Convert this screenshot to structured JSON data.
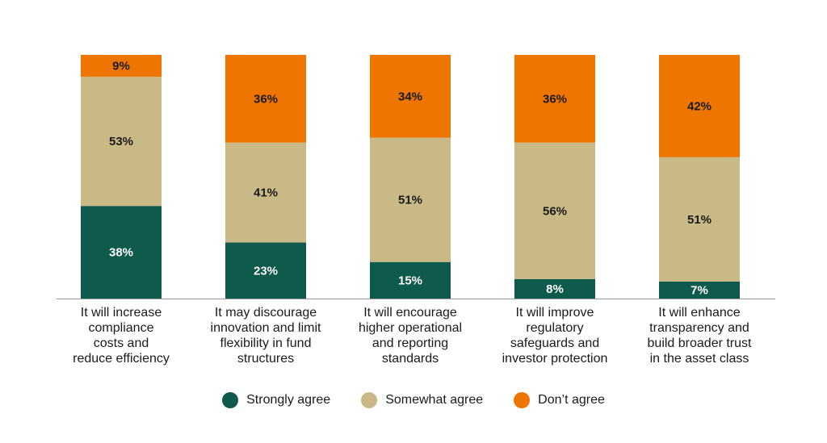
{
  "chart_data": {
    "type": "bar",
    "stacked": true,
    "orientation": "vertical",
    "categories": [
      [
        "It will increase",
        "compliance",
        "costs and",
        "reduce efficiency"
      ],
      [
        "It may discourage",
        "innovation and limit",
        "flexibility in fund",
        "structures"
      ],
      [
        "It will encourage",
        "higher operational",
        "and reporting",
        "standards"
      ],
      [
        "It will improve",
        "regulatory",
        "safeguards and",
        "investor protection"
      ],
      [
        "It will enhance",
        "transparency and",
        "build broader trust",
        "in the asset class"
      ]
    ],
    "series": [
      {
        "name": "Strongly agree",
        "color": "#0e5a4c",
        "label_color": "#ffffff",
        "values": [
          38,
          23,
          15,
          8,
          7
        ],
        "labels": [
          "38%",
          "23%",
          "15%",
          "8%",
          "7%"
        ]
      },
      {
        "name": "Somewhat agree",
        "color": "#c8b987",
        "label_color": "#1a1a1a",
        "values": [
          53,
          41,
          51,
          56,
          51
        ],
        "labels": [
          "53%",
          "41%",
          "51%",
          "56%",
          "51%"
        ]
      },
      {
        "name": "Don’t agree",
        "color": "#ee7600",
        "label_color": "#1a1a1a",
        "values": [
          9,
          36,
          34,
          36,
          42
        ],
        "labels": [
          "9%",
          "36%",
          "34%",
          "36%",
          "42%"
        ]
      }
    ],
    "legend_position": "bottom-center",
    "grid": false,
    "title": "",
    "xlabel": "",
    "ylabel": ""
  }
}
